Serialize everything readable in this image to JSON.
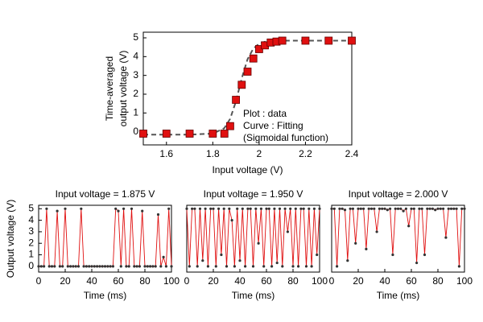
{
  "chart_data": [
    {
      "type": "scatter",
      "xlabel": "Input voltage (V)",
      "ylabel": [
        "Time-averaged",
        "output voltage (V)"
      ],
      "xlim": [
        1.5,
        2.4
      ],
      "xticks": [
        1.6,
        1.8,
        2.0,
        2.2,
        2.4
      ],
      "ylim": [
        -0.7,
        5.3
      ],
      "yticks": [
        0,
        1,
        2,
        3,
        4,
        5
      ],
      "annotations": [
        "Plot    : data",
        "Curve : Fitting",
        "(Sigmoidal function)"
      ],
      "series": [
        {
          "mode": "markers",
          "marker": "square",
          "color": "#e01010",
          "x": [
            1.5,
            1.6,
            1.7,
            1.8,
            1.85,
            1.875,
            1.9,
            1.925,
            1.95,
            1.975,
            2.0,
            2.025,
            2.05,
            2.075,
            2.1,
            2.2,
            2.3,
            2.4
          ],
          "values": [
            -0.1,
            -0.1,
            -0.1,
            -0.1,
            -0.1,
            0.3,
            1.7,
            2.5,
            3.2,
            3.9,
            4.4,
            4.6,
            4.75,
            4.8,
            4.85,
            4.85,
            4.85,
            4.85
          ]
        },
        {
          "mode": "line",
          "dash": true,
          "color": "#555555",
          "x": [
            1.5,
            1.7,
            1.8,
            1.85,
            1.875,
            1.9,
            1.925,
            1.95,
            1.975,
            2.0,
            2.025,
            2.05,
            2.1,
            2.4
          ],
          "values": [
            -0.15,
            -0.15,
            -0.1,
            0.19,
            0.69,
            1.62,
            2.84,
            3.86,
            4.43,
            4.69,
            4.79,
            4.83,
            4.85,
            4.85
          ]
        }
      ]
    },
    {
      "type": "line",
      "title": "Input voltage = 1.875 V",
      "xlabel": "Time (ms)",
      "ylabel": "Output voltage (V)",
      "xlim": [
        0,
        100
      ],
      "xticks": [
        0,
        20,
        40,
        60,
        80,
        100
      ],
      "ylim": [
        -0.5,
        5.3
      ],
      "yticks": [
        0,
        1,
        2,
        3,
        4,
        5
      ],
      "color": "#e01010",
      "marker_color": "#333333",
      "x": [
        0,
        2,
        4,
        6,
        8,
        10,
        12,
        14,
        16,
        18,
        20,
        22,
        24,
        26,
        28,
        30,
        32,
        34,
        36,
        38,
        40,
        42,
        44,
        46,
        48,
        50,
        52,
        54,
        56,
        58,
        60,
        62,
        64,
        66,
        68,
        70,
        72,
        74,
        76,
        78,
        80,
        82,
        84,
        86,
        88,
        90,
        92,
        94,
        96,
        98,
        100
      ],
      "values": [
        0,
        0,
        0,
        5,
        0,
        0,
        0,
        4.8,
        0,
        0,
        5,
        0,
        0,
        0,
        0,
        0,
        5,
        0,
        0,
        0,
        0,
        0,
        0,
        0,
        0,
        0,
        0,
        0,
        0,
        5,
        4.8,
        0,
        5,
        0,
        0,
        5,
        0,
        0,
        0,
        4.8,
        0,
        0,
        0,
        0,
        0,
        4.5,
        0,
        0.8,
        0,
        5,
        0
      ]
    },
    {
      "type": "line",
      "title": "Input voltage = 1.950 V",
      "xlabel": "Time (ms)",
      "xlim": [
        0,
        100
      ],
      "xticks": [
        0,
        20,
        40,
        60,
        80,
        100
      ],
      "ylim": [
        -0.5,
        5.3
      ],
      "color": "#e01010",
      "marker_color": "#333333",
      "x": [
        0,
        2,
        4,
        6,
        8,
        10,
        12,
        14,
        16,
        18,
        20,
        22,
        24,
        26,
        28,
        30,
        32,
        34,
        36,
        38,
        40,
        42,
        44,
        46,
        48,
        50,
        52,
        54,
        56,
        58,
        60,
        62,
        64,
        66,
        68,
        70,
        72,
        74,
        76,
        78,
        80,
        82,
        84,
        86,
        88,
        90,
        92,
        94,
        96,
        98,
        100
      ],
      "values": [
        5,
        0,
        5,
        5,
        0,
        5,
        0.5,
        5,
        0,
        5,
        5,
        0,
        5,
        1,
        5,
        0,
        5,
        4,
        0,
        5,
        0.5,
        5,
        0,
        5,
        5,
        0,
        5,
        2,
        5,
        0,
        5,
        5,
        0,
        5,
        0.3,
        5,
        0,
        5,
        3,
        5,
        0,
        5,
        0,
        5,
        5,
        0,
        5,
        0,
        5,
        1,
        5
      ]
    },
    {
      "type": "line",
      "title": "Input voltage = 2.000 V",
      "xlabel": "Time (ms)",
      "xlim": [
        0,
        100
      ],
      "xticks": [
        0,
        20,
        40,
        60,
        80,
        100
      ],
      "ylim": [
        -0.5,
        5.3
      ],
      "color": "#e01010",
      "marker_color": "#333333",
      "x": [
        0,
        2,
        4,
        6,
        8,
        10,
        12,
        14,
        16,
        18,
        20,
        22,
        24,
        26,
        28,
        30,
        32,
        34,
        36,
        38,
        40,
        42,
        44,
        46,
        48,
        50,
        52,
        54,
        56,
        58,
        60,
        62,
        64,
        66,
        68,
        70,
        72,
        74,
        76,
        78,
        80,
        82,
        84,
        86,
        88,
        90,
        92,
        94,
        96,
        98,
        100
      ],
      "values": [
        5,
        5,
        0,
        5,
        5,
        4.9,
        0.5,
        5,
        5,
        2,
        5,
        5,
        5,
        1.5,
        5,
        5,
        5,
        3,
        5,
        5,
        5,
        4.9,
        5,
        1,
        5,
        5,
        5,
        4.8,
        5,
        3.5,
        5,
        5,
        0.3,
        5,
        5,
        1,
        5,
        5,
        5,
        4.9,
        5,
        5,
        5,
        2.5,
        5,
        5,
        5,
        5,
        0,
        5,
        5
      ]
    }
  ]
}
